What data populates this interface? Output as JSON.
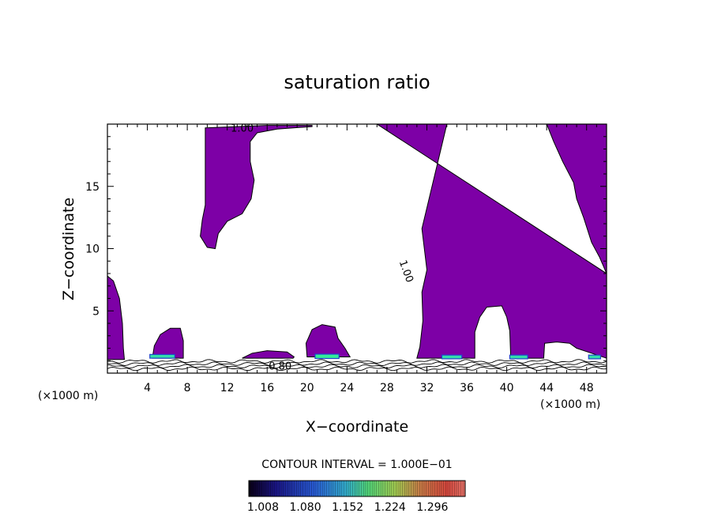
{
  "chart_data": {
    "type": "contour",
    "title": "saturation ratio",
    "xlabel": "X−coordinate",
    "ylabel": "Z−coordinate",
    "x_unit_left": "(×1000 m)",
    "x_unit_right": "(×1000 m)",
    "xlim": [
      0,
      50
    ],
    "ylim": [
      0,
      20
    ],
    "x_ticks": [
      4,
      8,
      12,
      16,
      20,
      24,
      28,
      32,
      36,
      40,
      44,
      48
    ],
    "y_ticks": [
      5,
      10,
      15
    ],
    "contour_interval_text": "CONTOUR INTERVAL = 1.000E−01",
    "contour_labels": [
      {
        "text": "1.00",
        "x": 13.5,
        "z": 19.7
      },
      {
        "text": "1.00",
        "x": 30.0,
        "z": 8.2
      },
      {
        "text": "0.80",
        "x": 17.3,
        "z": 0.6
      }
    ],
    "colorbar": {
      "min": 1.0,
      "max": 1.368,
      "tick_values": [
        "1.008",
        "1.080",
        "1.152",
        "1.224",
        "1.296"
      ]
    },
    "fill_color": "#7d00a6",
    "regions": [
      {
        "name": "left-edge",
        "points": [
          [
            0,
            7.8
          ],
          [
            0.6,
            7.4
          ],
          [
            1.2,
            6.0
          ],
          [
            1.5,
            4.0
          ],
          [
            1.6,
            2.0
          ],
          [
            1.7,
            1.1
          ],
          [
            0,
            1.1
          ]
        ]
      },
      {
        "name": "upper-plume",
        "points": [
          [
            9.8,
            19.7
          ],
          [
            13,
            19.8
          ],
          [
            16,
            19.9
          ],
          [
            20.5,
            19.9
          ],
          [
            20.5,
            19.8
          ],
          [
            17,
            19.6
          ],
          [
            15,
            19.3
          ],
          [
            14.3,
            18.6
          ],
          [
            14.3,
            17.0
          ],
          [
            14.7,
            15.5
          ],
          [
            14.4,
            14.0
          ],
          [
            13.5,
            12.8
          ],
          [
            12.0,
            12.2
          ],
          [
            11.1,
            11.2
          ],
          [
            10.8,
            10.0
          ],
          [
            10.0,
            10.1
          ],
          [
            9.3,
            11.0
          ],
          [
            9.5,
            12.3
          ],
          [
            9.8,
            13.5
          ],
          [
            9.8,
            19.7
          ]
        ]
      },
      {
        "name": "bump-6",
        "points": [
          [
            4.5,
            1.2
          ],
          [
            4.7,
            2.2
          ],
          [
            5.3,
            3.1
          ],
          [
            6.3,
            3.6
          ],
          [
            7.3,
            3.6
          ],
          [
            7.6,
            2.6
          ],
          [
            7.6,
            1.2
          ]
        ]
      },
      {
        "name": "bump-16",
        "points": [
          [
            13.5,
            1.2
          ],
          [
            14.5,
            1.6
          ],
          [
            16,
            1.8
          ],
          [
            18,
            1.7
          ],
          [
            18.7,
            1.3
          ],
          [
            18.6,
            1.2
          ]
        ]
      },
      {
        "name": "bump-21",
        "points": [
          [
            20.0,
            1.3
          ],
          [
            19.9,
            2.4
          ],
          [
            20.5,
            3.5
          ],
          [
            21.5,
            3.9
          ],
          [
            22.8,
            3.7
          ],
          [
            23.1,
            2.8
          ],
          [
            23.8,
            2.0
          ],
          [
            24.3,
            1.3
          ]
        ]
      },
      {
        "name": "main-right",
        "points": [
          [
            27.0,
            20
          ],
          [
            50,
            20
          ],
          [
            50,
            8.0
          ],
          [
            49.3,
            9.3
          ],
          [
            48.5,
            10.5
          ],
          [
            47.7,
            12.5
          ],
          [
            47.0,
            14.0
          ],
          [
            46.7,
            15.3
          ],
          [
            45.6,
            17.0
          ],
          [
            44.7,
            18.6
          ],
          [
            44.0,
            20
          ],
          [
            44.0,
            20
          ],
          [
            34,
            20
          ],
          [
            31.5,
            11.6
          ],
          [
            32.0,
            8.3
          ],
          [
            31.5,
            6.5
          ],
          [
            31.6,
            4.2
          ],
          [
            31.3,
            2.1
          ],
          [
            31.0,
            1.2
          ],
          [
            36.8,
            1.2
          ],
          [
            36.8,
            3.3
          ],
          [
            37.3,
            4.5
          ],
          [
            38.0,
            5.3
          ],
          [
            39.5,
            5.4
          ],
          [
            40.0,
            4.5
          ],
          [
            40.3,
            3.4
          ],
          [
            40.4,
            1.2
          ],
          [
            43.7,
            1.2
          ],
          [
            43.8,
            2.4
          ],
          [
            45.0,
            2.5
          ],
          [
            46.3,
            2.4
          ],
          [
            47.0,
            2.0
          ],
          [
            48.5,
            1.6
          ],
          [
            50,
            1.2
          ],
          [
            50,
            8.0
          ]
        ]
      }
    ],
    "hotspots": [
      {
        "x": 5.5,
        "z": 1.35,
        "w": 2.5,
        "h": 0.3,
        "color": "#33ddaa"
      },
      {
        "x": 22.0,
        "z": 1.35,
        "w": 2.4,
        "h": 0.35,
        "color": "#33ee99"
      },
      {
        "x": 34.5,
        "z": 1.3,
        "w": 2.0,
        "h": 0.3,
        "color": "#33ddaa"
      },
      {
        "x": 41.2,
        "z": 1.3,
        "w": 1.8,
        "h": 0.3,
        "color": "#33ddaa"
      },
      {
        "x": 48.8,
        "z": 1.3,
        "w": 1.2,
        "h": 0.3,
        "color": "#33ddaa"
      }
    ]
  }
}
